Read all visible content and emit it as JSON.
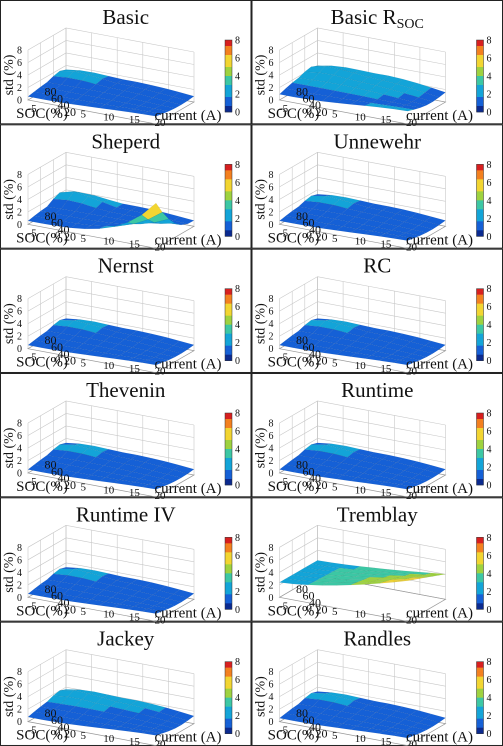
{
  "figure": {
    "grid_rows": 6,
    "grid_cols": 2,
    "colorbar_ticks": [
      "8",
      "6",
      "4",
      "2",
      "0"
    ],
    "colormap": [
      "#0b2a8f",
      "#1560d6",
      "#13a4d8",
      "#3cc7a4",
      "#9ed23f",
      "#f2d531",
      "#f3801f",
      "#d71f1f"
    ]
  },
  "chart_data": [
    {
      "type": "surface",
      "title": "Basic",
      "title_sub": "",
      "xlabel": "current (A)",
      "ylabel": "SOC(%)",
      "zlabel": "std (%)",
      "x_ticks": [
        "-5",
        "0",
        "5",
        "10",
        "15",
        "20"
      ],
      "y_ticks": [
        "80",
        "60",
        "40",
        "20"
      ],
      "z_ticks": [
        "8",
        "6",
        "4",
        "2",
        "0"
      ],
      "zlim": [
        0,
        8
      ],
      "clim": [
        0,
        8
      ],
      "std_peak": 4.5,
      "std_typical": 1.5
    },
    {
      "type": "surface",
      "title": "Basic R",
      "title_sub": "SOC",
      "xlabel": "current (A)",
      "ylabel": "SOC(%)",
      "zlabel": "std (%)",
      "x_ticks": [
        "-5",
        "0",
        "5",
        "10",
        "15",
        "20"
      ],
      "y_ticks": [
        "80",
        "60",
        "40",
        "20"
      ],
      "z_ticks": [
        "8",
        "6",
        "4",
        "2",
        "0"
      ],
      "zlim": [
        0,
        8
      ],
      "clim": [
        0,
        8
      ],
      "std_peak": 4.5,
      "std_typical": 2.5
    },
    {
      "type": "surface",
      "title": "Sheperd",
      "title_sub": "",
      "xlabel": "current (A)",
      "ylabel": "SOC(%)",
      "zlabel": "std (%)",
      "x_ticks": [
        "-5",
        "0",
        "5",
        "10",
        "15",
        "20"
      ],
      "y_ticks": [
        "80",
        "60",
        "40",
        "20"
      ],
      "z_ticks": [
        "8",
        "6",
        "4",
        "2",
        "0"
      ],
      "zlim": [
        0,
        8
      ],
      "clim": [
        0,
        8
      ],
      "std_peak": 7.5,
      "std_typical": 1.5
    },
    {
      "type": "surface",
      "title": "Unnewehr",
      "title_sub": "",
      "xlabel": "current (A)",
      "ylabel": "SOC(%)",
      "zlabel": "std (%)",
      "x_ticks": [
        "-5",
        "0",
        "5",
        "10",
        "15",
        "20"
      ],
      "y_ticks": [
        "80",
        "60",
        "40",
        "20"
      ],
      "z_ticks": [
        "8",
        "6",
        "4",
        "2",
        "0"
      ],
      "zlim": [
        0,
        8
      ],
      "clim": [
        0,
        8
      ],
      "std_peak": 4.0,
      "std_typical": 1.5
    },
    {
      "type": "surface",
      "title": "Nernst",
      "title_sub": "",
      "xlabel": "current (A)",
      "ylabel": "SOC(%)",
      "zlabel": "std (%)",
      "x_ticks": [
        "-5",
        "0",
        "5",
        "10",
        "15",
        "20"
      ],
      "y_ticks": [
        "80",
        "60",
        "40",
        "20"
      ],
      "z_ticks": [
        "8",
        "6",
        "4",
        "2",
        "0"
      ],
      "zlim": [
        0,
        8
      ],
      "clim": [
        0,
        8
      ],
      "std_peak": 4.0,
      "std_typical": 1.5
    },
    {
      "type": "surface",
      "title": "RC",
      "title_sub": "",
      "xlabel": "current (A)",
      "ylabel": "SOC(%)",
      "zlabel": "std (%)",
      "x_ticks": [
        "-5",
        "0",
        "5",
        "10",
        "15",
        "20"
      ],
      "y_ticks": [
        "80",
        "60",
        "40",
        "20"
      ],
      "z_ticks": [
        "8",
        "6",
        "4",
        "2",
        "0"
      ],
      "zlim": [
        0,
        8
      ],
      "clim": [
        0,
        8
      ],
      "std_peak": 4.0,
      "std_typical": 1.5
    },
    {
      "type": "surface",
      "title": "Thevenin",
      "title_sub": "",
      "xlabel": "current (A)",
      "ylabel": "SOC(%)",
      "zlabel": "std (%)",
      "x_ticks": [
        "-5",
        "0",
        "5",
        "10",
        "15",
        "20"
      ],
      "y_ticks": [
        "80",
        "60",
        "40",
        "20"
      ],
      "z_ticks": [
        "8",
        "6",
        "4",
        "2",
        "0"
      ],
      "zlim": [
        0,
        8
      ],
      "clim": [
        0,
        8
      ],
      "std_peak": 4.0,
      "std_typical": 1.5
    },
    {
      "type": "surface",
      "title": "Runtime",
      "title_sub": "",
      "xlabel": "current (A)",
      "ylabel": "SOC(%)",
      "zlabel": "std (%)",
      "x_ticks": [
        "-5",
        "0",
        "5",
        "10",
        "15",
        "20"
      ],
      "y_ticks": [
        "80",
        "60",
        "40",
        "20"
      ],
      "z_ticks": [
        "8",
        "6",
        "4",
        "2",
        "0"
      ],
      "zlim": [
        0,
        8
      ],
      "clim": [
        0,
        8
      ],
      "std_peak": 4.0,
      "std_typical": 1.5
    },
    {
      "type": "surface",
      "title": "Runtime IV",
      "title_sub": "",
      "xlabel": "current (A)",
      "ylabel": "SOC(%)",
      "zlabel": "std (%)",
      "x_ticks": [
        "-5",
        "0",
        "5",
        "10",
        "15",
        "20"
      ],
      "y_ticks": [
        "80",
        "60",
        "40",
        "20"
      ],
      "z_ticks": [
        "8",
        "6",
        "4",
        "2",
        "0"
      ],
      "zlim": [
        0,
        8
      ],
      "clim": [
        0,
        8
      ],
      "std_peak": 4.0,
      "std_typical": 1.5
    },
    {
      "type": "surface",
      "title": "Tremblay",
      "title_sub": "",
      "xlabel": "current (A)",
      "ylabel": "SOC(%)",
      "zlabel": "std (%)",
      "x_ticks": [
        "-5",
        "0",
        "5",
        "10",
        "15",
        "20"
      ],
      "y_ticks": [
        "80",
        "60",
        "40",
        "20"
      ],
      "z_ticks": [
        "8",
        "6",
        "4",
        "2",
        "0"
      ],
      "zlim": [
        0,
        8
      ],
      "clim": [
        0,
        8
      ],
      "std_peak": 6.5,
      "std_typical": 4.0
    },
    {
      "type": "surface",
      "title": "Jackey",
      "title_sub": "",
      "xlabel": "current (A)",
      "ylabel": "SOC(%)",
      "zlabel": "std (%)",
      "x_ticks": [
        "-5",
        "0",
        "5",
        "10",
        "15",
        "20"
      ],
      "y_ticks": [
        "80",
        "60",
        "40",
        "20"
      ],
      "z_ticks": [
        "8",
        "6",
        "4",
        "2",
        "0"
      ],
      "zlim": [
        0,
        8
      ],
      "clim": [
        0,
        8
      ],
      "std_peak": 4.5,
      "std_typical": 2.0
    },
    {
      "type": "surface",
      "title": "Randles",
      "title_sub": "",
      "xlabel": "current (A)",
      "ylabel": "SOC(%)",
      "zlabel": "std (%)",
      "x_ticks": [
        "-5",
        "0",
        "5",
        "10",
        "15",
        "20"
      ],
      "y_ticks": [
        "80",
        "60",
        "40",
        "20"
      ],
      "z_ticks": [
        "8",
        "6",
        "4",
        "2",
        "0"
      ],
      "zlim": [
        0,
        8
      ],
      "clim": [
        0,
        8
      ],
      "std_peak": 4.0,
      "std_typical": 1.5
    }
  ]
}
